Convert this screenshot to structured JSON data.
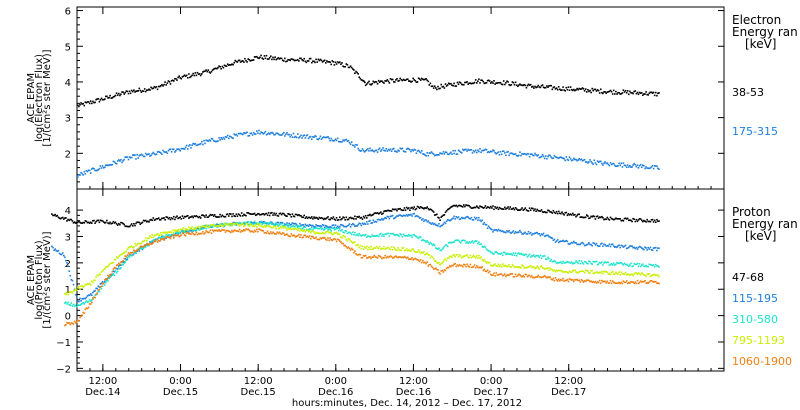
{
  "chart_data": [
    {
      "type": "scatter",
      "panel": "top",
      "ylabel": [
        "ACE EPAM",
        "log(Electron Flux)",
        "[1/(cm²s ster MeV)]"
      ],
      "ylim": [
        1,
        6.1
      ],
      "yticks": [
        "6",
        "5",
        "4",
        "3",
        "2"
      ],
      "ytick_values": [
        6,
        5,
        4,
        3,
        2
      ],
      "legend_title": [
        "Electron",
        "Energy ran",
        "[keV]"
      ],
      "legend_placement": "right",
      "grid": false,
      "series": [
        {
          "name": "38-53",
          "color": "#000000",
          "points": [
            [
              8,
              3.35
            ],
            [
              12,
              3.55
            ],
            [
              16,
              3.75
            ],
            [
              20,
              3.85
            ],
            [
              24,
              4.15
            ],
            [
              28,
              4.3
            ],
            [
              32,
              4.55
            ],
            [
              36,
              4.72
            ],
            [
              40,
              4.65
            ],
            [
              44,
              4.62
            ],
            [
              48,
              4.55
            ],
            [
              50,
              4.45
            ],
            [
              52,
              4.1
            ],
            [
              52.5,
              3.98
            ],
            [
              56,
              4.05
            ],
            [
              60,
              4.08
            ],
            [
              62,
              4.05
            ],
            [
              63,
              3.85
            ],
            [
              66,
              3.95
            ],
            [
              70,
              4.05
            ],
            [
              74,
              4.0
            ],
            [
              78,
              3.9
            ],
            [
              82,
              3.85
            ],
            [
              86,
              3.8
            ],
            [
              90,
              3.75
            ],
            [
              94,
              3.72
            ],
            [
              98,
              3.68
            ]
          ]
        },
        {
          "name": "175-315",
          "color": "#1f7fdc",
          "points": [
            [
              8,
              1.4
            ],
            [
              12,
              1.65
            ],
            [
              16,
              1.9
            ],
            [
              20,
              2.0
            ],
            [
              24,
              2.15
            ],
            [
              28,
              2.35
            ],
            [
              32,
              2.5
            ],
            [
              36,
              2.62
            ],
            [
              40,
              2.55
            ],
            [
              44,
              2.48
            ],
            [
              48,
              2.42
            ],
            [
              50,
              2.35
            ],
            [
              52,
              2.1
            ],
            [
              56,
              2.12
            ],
            [
              60,
              2.1
            ],
            [
              62,
              2.0
            ],
            [
              66,
              2.05
            ],
            [
              70,
              2.1
            ],
            [
              74,
              2.02
            ],
            [
              78,
              1.98
            ],
            [
              82,
              1.9
            ],
            [
              86,
              1.82
            ],
            [
              90,
              1.72
            ],
            [
              94,
              1.68
            ],
            [
              98,
              1.6
            ]
          ]
        }
      ]
    },
    {
      "type": "scatter",
      "panel": "bottom",
      "ylabel": [
        "ACE EPAM",
        "log(Proton Flux)",
        "[1/(cm²s ster MeV)]"
      ],
      "ylim": [
        -2.1,
        4.8
      ],
      "yticks": [
        "4",
        "3",
        "2",
        "1",
        "0",
        "−1",
        "−2"
      ],
      "ytick_values": [
        4,
        3,
        2,
        1,
        0,
        -1,
        -2
      ],
      "legend_title": [
        "Proton",
        "Energy ran",
        "[keV]"
      ],
      "legend_placement": "right",
      "grid": false,
      "series": [
        {
          "name": "47-68",
          "color": "#000000",
          "points": [
            [
              4,
              3.85
            ],
            [
              8,
              3.55
            ],
            [
              12,
              3.6
            ],
            [
              16,
              3.45
            ],
            [
              20,
              3.7
            ],
            [
              24,
              3.75
            ],
            [
              28,
              3.8
            ],
            [
              32,
              3.85
            ],
            [
              36,
              3.9
            ],
            [
              40,
              3.85
            ],
            [
              44,
              3.75
            ],
            [
              48,
              3.7
            ],
            [
              52,
              3.75
            ],
            [
              56,
              4.0
            ],
            [
              60,
              4.1
            ],
            [
              62,
              4.15
            ],
            [
              64,
              3.7
            ],
            [
              66,
              4.2
            ],
            [
              70,
              4.15
            ],
            [
              74,
              4.1
            ],
            [
              78,
              4.05
            ],
            [
              82,
              3.95
            ],
            [
              86,
              3.8
            ],
            [
              90,
              3.7
            ],
            [
              94,
              3.65
            ],
            [
              98,
              3.62
            ]
          ]
        },
        {
          "name": "115-195",
          "color": "#1f7fdc",
          "points": [
            [
              4,
              2.6
            ],
            [
              6,
              2.3
            ],
            [
              8,
              0.6
            ],
            [
              10,
              0.8
            ],
            [
              12,
              1.3
            ],
            [
              14,
              1.8
            ],
            [
              16,
              2.3
            ],
            [
              20,
              2.9
            ],
            [
              24,
              3.2
            ],
            [
              28,
              3.4
            ],
            [
              32,
              3.5
            ],
            [
              36,
              3.55
            ],
            [
              40,
              3.5
            ],
            [
              44,
              3.45
            ],
            [
              48,
              3.4
            ],
            [
              52,
              3.5
            ],
            [
              56,
              3.75
            ],
            [
              60,
              3.85
            ],
            [
              62,
              3.6
            ],
            [
              64,
              3.45
            ],
            [
              66,
              3.75
            ],
            [
              70,
              3.7
            ],
            [
              72,
              3.25
            ],
            [
              76,
              3.2
            ],
            [
              80,
              3.1
            ],
            [
              82,
              2.85
            ],
            [
              86,
              2.75
            ],
            [
              90,
              2.7
            ],
            [
              94,
              2.6
            ],
            [
              98,
              2.55
            ]
          ]
        },
        {
          "name": "310-580",
          "color": "#1ce3cc",
          "points": [
            [
              6,
              0.5
            ],
            [
              8,
              0.4
            ],
            [
              10,
              0.6
            ],
            [
              12,
              1.2
            ],
            [
              14,
              1.7
            ],
            [
              16,
              2.3
            ],
            [
              20,
              2.9
            ],
            [
              24,
              3.2
            ],
            [
              28,
              3.4
            ],
            [
              32,
              3.5
            ],
            [
              36,
              3.55
            ],
            [
              40,
              3.45
            ],
            [
              44,
              3.3
            ],
            [
              48,
              3.3
            ],
            [
              52,
              3.05
            ],
            [
              56,
              3.1
            ],
            [
              60,
              3.05
            ],
            [
              62,
              2.85
            ],
            [
              64,
              2.5
            ],
            [
              66,
              2.85
            ],
            [
              70,
              2.8
            ],
            [
              72,
              2.4
            ],
            [
              76,
              2.35
            ],
            [
              80,
              2.25
            ],
            [
              82,
              2.05
            ],
            [
              86,
              2.05
            ],
            [
              90,
              2.0
            ],
            [
              94,
              1.95
            ],
            [
              98,
              1.9
            ]
          ]
        },
        {
          "name": "795-1193",
          "color": "#c7f000",
          "points": [
            [
              6,
              0.8
            ],
            [
              8,
              1.05
            ],
            [
              10,
              1.25
            ],
            [
              12,
              1.75
            ],
            [
              14,
              2.2
            ],
            [
              16,
              2.6
            ],
            [
              20,
              3.1
            ],
            [
              24,
              3.3
            ],
            [
              28,
              3.4
            ],
            [
              32,
              3.5
            ],
            [
              36,
              3.45
            ],
            [
              40,
              3.35
            ],
            [
              44,
              3.2
            ],
            [
              48,
              3.15
            ],
            [
              52,
              2.6
            ],
            [
              56,
              2.6
            ],
            [
              60,
              2.5
            ],
            [
              62,
              2.35
            ],
            [
              64,
              2.0
            ],
            [
              66,
              2.3
            ],
            [
              70,
              2.25
            ],
            [
              72,
              1.95
            ],
            [
              76,
              1.9
            ],
            [
              80,
              1.85
            ],
            [
              82,
              1.7
            ],
            [
              86,
              1.7
            ],
            [
              90,
              1.65
            ],
            [
              94,
              1.6
            ],
            [
              98,
              1.55
            ]
          ]
        },
        {
          "name": "1060-1900",
          "color": "#f07f10",
          "points": [
            [
              6,
              -0.3
            ],
            [
              8,
              -0.2
            ],
            [
              10,
              0.5
            ],
            [
              12,
              1.3
            ],
            [
              14,
              1.9
            ],
            [
              16,
              2.4
            ],
            [
              20,
              2.85
            ],
            [
              24,
              3.1
            ],
            [
              28,
              3.2
            ],
            [
              32,
              3.25
            ],
            [
              36,
              3.25
            ],
            [
              40,
              3.1
            ],
            [
              44,
              3.0
            ],
            [
              48,
              2.9
            ],
            [
              52,
              2.25
            ],
            [
              56,
              2.25
            ],
            [
              60,
              2.2
            ],
            [
              62,
              2.0
            ],
            [
              64,
              1.65
            ],
            [
              66,
              1.95
            ],
            [
              70,
              1.9
            ],
            [
              72,
              1.6
            ],
            [
              76,
              1.55
            ],
            [
              80,
              1.5
            ],
            [
              82,
              1.4
            ],
            [
              86,
              1.35
            ],
            [
              90,
              1.3
            ],
            [
              94,
              1.3
            ],
            [
              98,
              1.3
            ]
          ]
        }
      ]
    }
  ],
  "x_axis": {
    "xlabel": "hours:minutes, Dec. 14, 2012 – Dec. 17, 2012",
    "xlim_hours_from_dec14_00": [
      8,
      108
    ],
    "ticks": [
      {
        "hours": 12,
        "time": "12:00",
        "date": "Dec.14"
      },
      {
        "hours": 24,
        "time": "0:00",
        "date": "Dec.15"
      },
      {
        "hours": 36,
        "time": "12:00",
        "date": "Dec.15"
      },
      {
        "hours": 48,
        "time": "0:00",
        "date": "Dec.16"
      },
      {
        "hours": 60,
        "time": "12:00",
        "date": "Dec.16"
      },
      {
        "hours": 72,
        "time": "0:00",
        "date": "Dec.17"
      },
      {
        "hours": 84,
        "time": "12:00",
        "date": "Dec.17"
      }
    ]
  }
}
